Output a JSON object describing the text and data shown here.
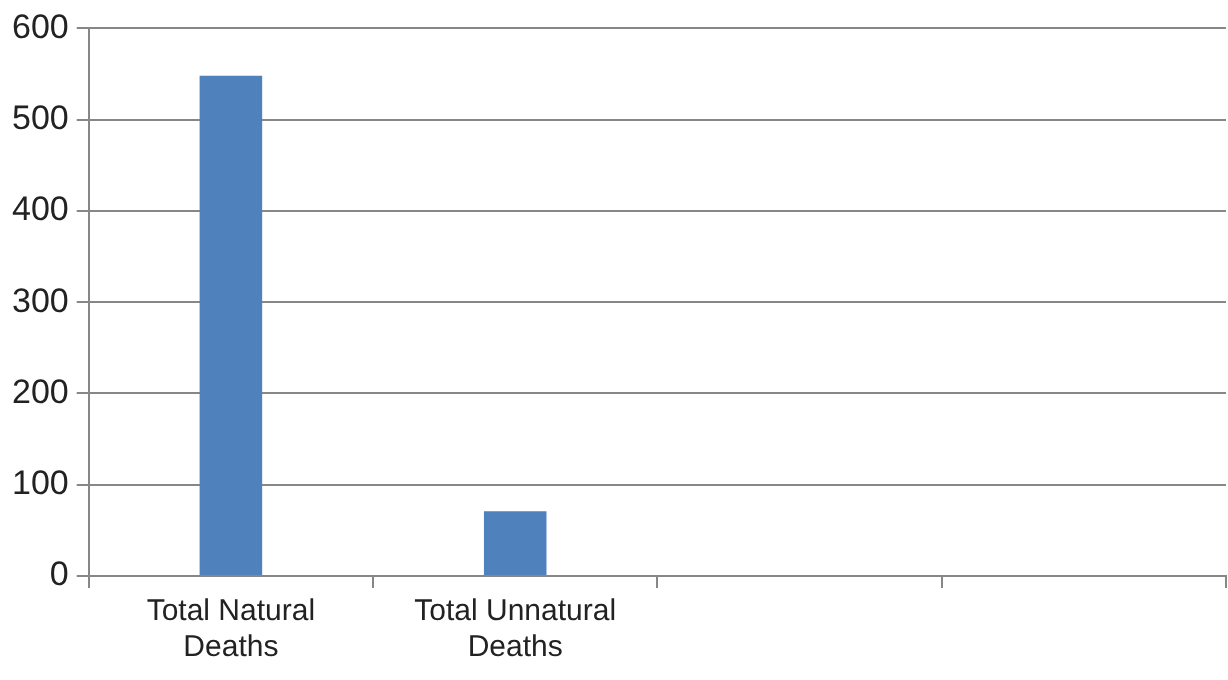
{
  "chart_data": {
    "type": "bar",
    "categories": [
      "Total Natural Deaths",
      "Total Unnatural Deaths",
      null,
      null
    ],
    "values": [
      548,
      71,
      null,
      null
    ],
    "color": "#4f81bd",
    "ylim": [
      0,
      600
    ],
    "yticks": [
      0,
      100,
      200,
      300,
      400,
      500,
      600
    ],
    "grid": "y",
    "legend": false
  }
}
